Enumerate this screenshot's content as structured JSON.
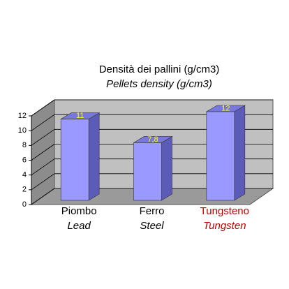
{
  "chart_data": {
    "type": "bar3d",
    "title": "Densità dei pallini (g/cm3)",
    "subtitle": "Pellets density (g/cm3)",
    "categories": [
      "Piombo",
      "Ferro",
      "Tungsteno"
    ],
    "category_translations": [
      "Lead",
      "Steel",
      "Tungsten"
    ],
    "category_label_colors": [
      "#000000",
      "#000000",
      "#c00000"
    ],
    "values": [
      11,
      7.8,
      12
    ],
    "value_labels": [
      "11",
      "7,8",
      "12"
    ],
    "color": "#9999ff",
    "value_label_color": "#ffff00",
    "ylim": [
      0,
      12
    ],
    "yticks": [
      0,
      2,
      4,
      6,
      8,
      10,
      12
    ],
    "grid": true
  }
}
